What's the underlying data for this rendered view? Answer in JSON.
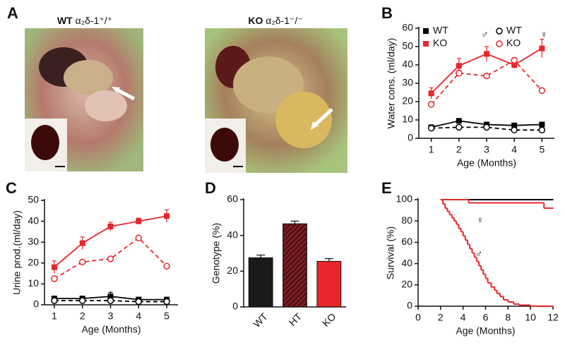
{
  "panel_labels": [
    "A",
    "B",
    "C",
    "D",
    "E"
  ],
  "photos": [
    {
      "genotype": "WT",
      "gene": "α₂δ-1⁺/⁺"
    },
    {
      "genotype": "KO",
      "gene": "α₂δ-1⁻/⁻"
    }
  ],
  "chart_data": [
    {
      "type": "line",
      "xlabel": "Age (Months)",
      "ylabel": "Water cons. (ml/day)",
      "x": [
        1,
        2,
        3,
        4,
        5
      ],
      "xlim": [
        0.55,
        5.45
      ],
      "xticks": [
        1,
        2,
        3,
        4,
        5
      ],
      "ylim": [
        0,
        60
      ],
      "yticks": [
        0,
        10,
        20,
        30,
        40,
        50,
        60
      ],
      "legend_titles": [
        "♂",
        "♀"
      ],
      "series": [
        {
          "name": "WT",
          "color": "#000000",
          "marker": "square",
          "dashed": false,
          "values": [
            6,
            9.5,
            7.5,
            7,
            7.5
          ],
          "errors": [
            1,
            1.2,
            1,
            1,
            1
          ]
        },
        {
          "name": "KO",
          "color": "#e8262b",
          "marker": "square",
          "dashed": false,
          "values": [
            24.5,
            39.5,
            46,
            40,
            49
          ],
          "errors": [
            3,
            4,
            4,
            2,
            5
          ]
        },
        {
          "name": "WT",
          "color": "#000000",
          "marker": "circle",
          "dashed": true,
          "values": [
            5.5,
            6,
            6,
            4.5,
            4.5
          ],
          "errors": [
            0.8,
            1,
            1,
            0.8,
            0.8
          ]
        },
        {
          "name": "KO",
          "color": "#e8262b",
          "marker": "circle",
          "dashed": true,
          "values": [
            18.5,
            35.5,
            34,
            42.5,
            26
          ],
          "errors": [
            1,
            1.5,
            1,
            1.5,
            1
          ]
        }
      ]
    },
    {
      "type": "line",
      "xlabel": "Age (Months)",
      "ylabel": "Urine prod.(ml/day)",
      "x": [
        1,
        2,
        3,
        4,
        5
      ],
      "xlim": [
        0.65,
        5.4
      ],
      "xticks": [
        1,
        2,
        3,
        4,
        5
      ],
      "ylim": [
        0,
        50
      ],
      "yticks": [
        0,
        10,
        20,
        30,
        40,
        50
      ],
      "series": [
        {
          "color": "#000000",
          "marker": "square",
          "dashed": false,
          "values": [
            3,
            3,
            4,
            2.5,
            2.5
          ],
          "errors": [
            1,
            1,
            2,
            1,
            1
          ]
        },
        {
          "color": "#e8262b",
          "marker": "square",
          "dashed": false,
          "values": [
            18,
            29.5,
            37.5,
            40,
            42.5
          ],
          "errors": [
            3,
            3,
            2,
            1.5,
            3
          ]
        },
        {
          "color": "#000000",
          "marker": "circle",
          "dashed": true,
          "values": [
            2,
            2,
            2,
            1.5,
            1.5
          ],
          "errors": [
            1,
            1,
            1,
            1,
            1
          ]
        },
        {
          "color": "#e8262b",
          "marker": "circle",
          "dashed": true,
          "values": [
            12.5,
            20.5,
            22,
            32,
            18.5
          ],
          "errors": [
            1,
            1,
            1,
            1,
            1
          ]
        }
      ]
    },
    {
      "type": "bar",
      "ylabel": "Genotype (%)",
      "categories": [
        "WT",
        "HT",
        "KO"
      ],
      "values": [
        27.5,
        46.5,
        25.5
      ],
      "errors": [
        1.5,
        1.5,
        1.5
      ],
      "colors": [
        "#1a1a1a",
        "#7a1c22",
        "#e8262b"
      ],
      "hatched": [
        false,
        true,
        false
      ],
      "ylim": [
        0,
        60
      ],
      "yticks": [
        0,
        20,
        40,
        60
      ]
    },
    {
      "type": "step",
      "xlabel": "Age (Months)",
      "ylabel": "Survival (%)",
      "xlim": [
        0,
        12
      ],
      "xticks": [
        0,
        2,
        4,
        6,
        8,
        10,
        12
      ],
      "ylim": [
        0,
        100
      ],
      "yticks": [
        0,
        20,
        40,
        60,
        80,
        100
      ],
      "annotations": [
        "♀",
        "♂"
      ],
      "series": [
        {
          "color": "#000000",
          "x": [
            2,
            12
          ],
          "values": [
            100,
            100
          ]
        },
        {
          "color": "#e8262b",
          "x": [
            2,
            4.5,
            11.2,
            12
          ],
          "values": [
            100,
            97,
            92,
            92
          ]
        },
        {
          "color": "#e8262b",
          "x": [
            2,
            2.2,
            2.4,
            2.6,
            2.8,
            3,
            3.2,
            3.4,
            3.6,
            3.8,
            4,
            4.2,
            4.4,
            4.6,
            4.8,
            5,
            5.2,
            5.4,
            5.6,
            5.8,
            6,
            6.2,
            6.5,
            6.8,
            7,
            7.3,
            7.6,
            8,
            8.5,
            9,
            10,
            12
          ],
          "values": [
            100,
            96,
            92,
            89,
            86,
            83,
            80,
            77,
            73,
            70,
            66,
            62,
            58,
            54,
            50,
            46,
            42,
            38,
            34,
            30,
            26,
            22,
            18,
            15,
            12,
            9,
            6,
            4,
            2,
            1,
            0,
            0
          ]
        }
      ]
    }
  ]
}
